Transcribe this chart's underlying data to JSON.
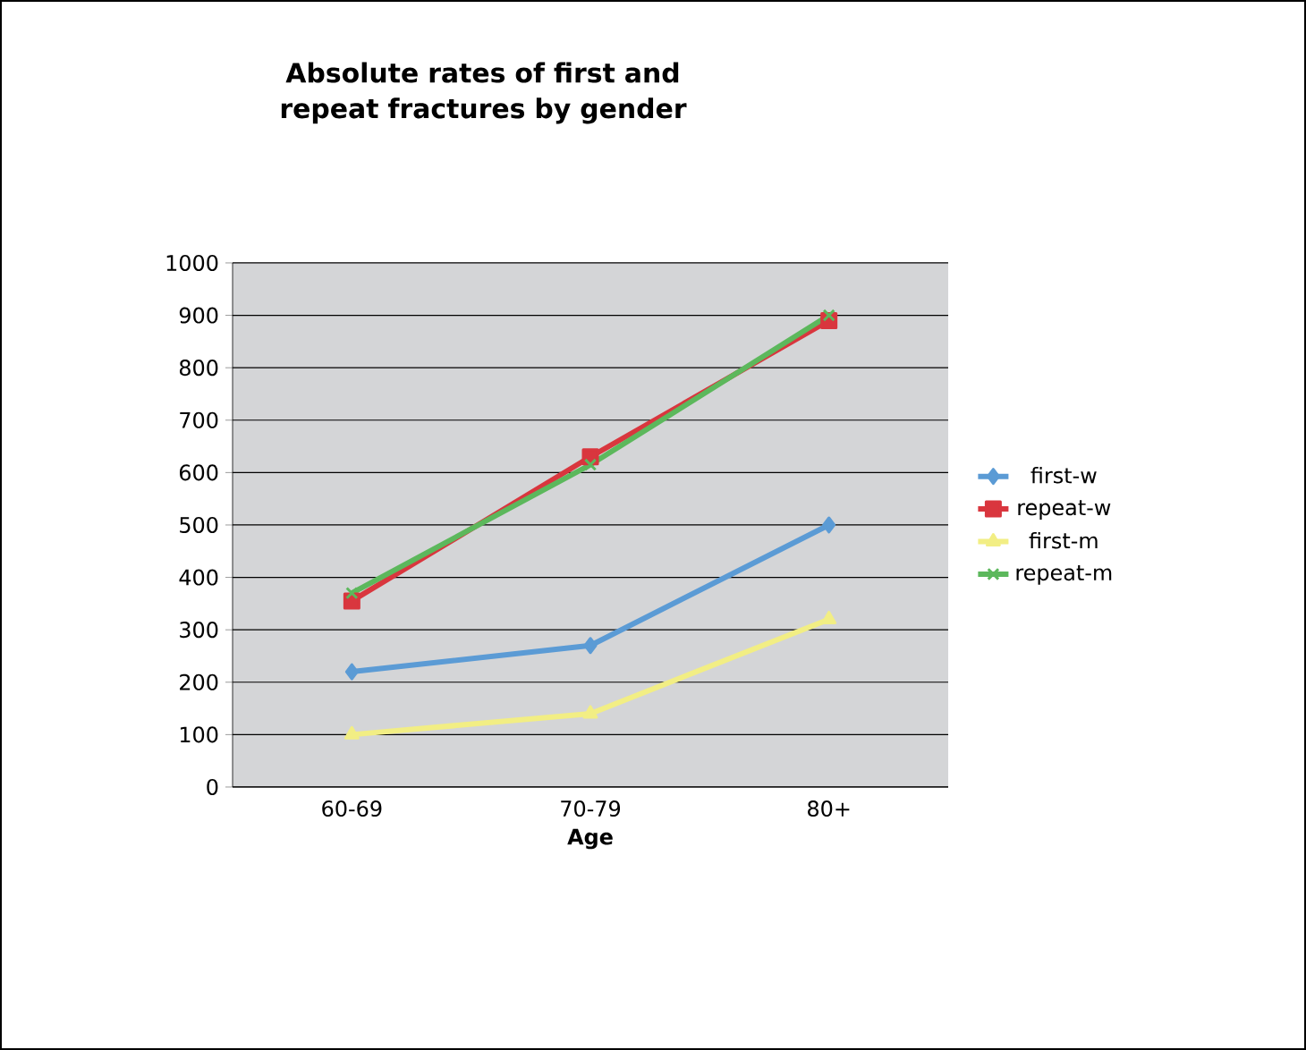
{
  "chart_data": {
    "type": "line",
    "title": "Absolute rates of first and repeat fractures by gender",
    "xlabel": "Age",
    "categories": [
      "60-69",
      "70-79",
      "80+"
    ],
    "series": [
      {
        "name": "first-w",
        "color": "#5b9bd5",
        "marker": "diamond",
        "values": [
          220,
          270,
          500
        ]
      },
      {
        "name": "repeat-w",
        "color": "#d9363e",
        "marker": "square",
        "values": [
          355,
          630,
          890
        ]
      },
      {
        "name": "first-m",
        "color": "#f2ee84",
        "marker": "triangle",
        "values": [
          100,
          140,
          320
        ]
      },
      {
        "name": "repeat-m",
        "color": "#5cb85c",
        "marker": "cross",
        "values": [
          370,
          615,
          900
        ]
      }
    ],
    "ylim": [
      0,
      1000
    ],
    "yticks": [
      0,
      100,
      200,
      300,
      400,
      500,
      600,
      700,
      800,
      900,
      1000
    ],
    "grid": "y",
    "legend": "right"
  }
}
